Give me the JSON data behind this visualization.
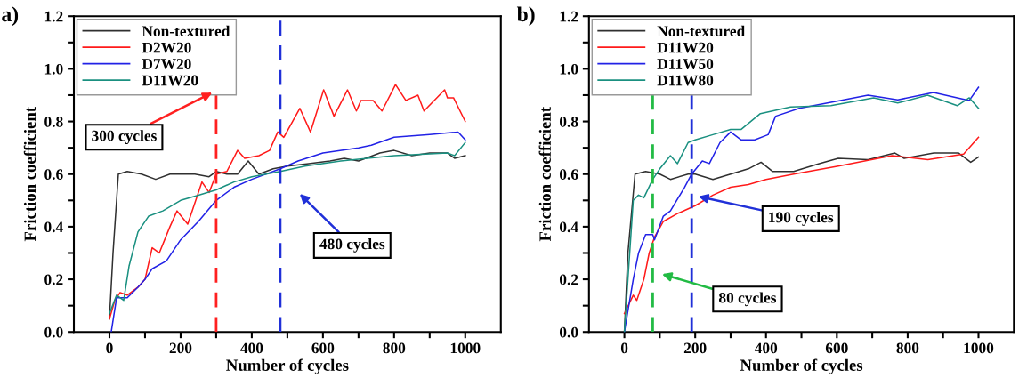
{
  "chart_data": [
    {
      "type": "line",
      "title": "a)",
      "xlabel": "Number of cycles",
      "ylabel": "Friction coefficient",
      "xlim": [
        -100,
        1100
      ],
      "ylim": [
        0,
        1.2
      ],
      "xticks": [
        0,
        {
          "value": 100,
          "label": null
        },
        200,
        {
          "value": 300,
          "label": null
        },
        400,
        {
          "value": 500,
          "label": null
        },
        600,
        {
          "value": 700,
          "label": null
        },
        800,
        {
          "value": 900,
          "label": null
        },
        1000
      ],
      "yticks": [
        {
          "value": 0,
          "label": "0.0"
        },
        {
          "value": 0.1,
          "label": null
        },
        0.2,
        {
          "value": 0.3,
          "label": null
        },
        0.4,
        {
          "value": 0.5,
          "label": null
        },
        0.6,
        {
          "value": 0.7,
          "label": null
        },
        0.8,
        {
          "value": 0.9,
          "label": null
        },
        {
          "value": 1,
          "label": "1.0"
        },
        {
          "value": 1.1,
          "label": null
        },
        1.2
      ],
      "legend": "top left",
      "grid": false,
      "line_style": "solid",
      "marker": "none",
      "series": [
        {
          "name": "Non-textured",
          "color": "#303030",
          "x": [
            0,
            10,
            25,
            50,
            90,
            130,
            170,
            200,
            240,
            280,
            300,
            330,
            360,
            390,
            420,
            460,
            500,
            560,
            620,
            660,
            700,
            760,
            800,
            850,
            900,
            950,
            970,
            1000
          ],
          "values": [
            0.05,
            0.3,
            0.6,
            0.61,
            0.6,
            0.58,
            0.6,
            0.6,
            0.6,
            0.59,
            0.61,
            0.6,
            0.6,
            0.65,
            0.6,
            0.62,
            0.63,
            0.64,
            0.65,
            0.66,
            0.65,
            0.68,
            0.69,
            0.67,
            0.68,
            0.68,
            0.66,
            0.67
          ]
        },
        {
          "name": "D2W20",
          "color": "#ff1a1a",
          "x": [
            0,
            15,
            30,
            50,
            80,
            100,
            120,
            140,
            170,
            190,
            220,
            260,
            280,
            300,
            330,
            360,
            380,
            420,
            450,
            473,
            490,
            535,
            565,
            602,
            631,
            669,
            694,
            707,
            741,
            766,
            804,
            833,
            867,
            884,
            942,
            950,
            967,
            1000
          ],
          "values": [
            0.05,
            0.12,
            0.15,
            0.14,
            0.17,
            0.2,
            0.32,
            0.3,
            0.4,
            0.46,
            0.41,
            0.57,
            0.53,
            0.6,
            0.61,
            0.69,
            0.66,
            0.67,
            0.69,
            0.76,
            0.74,
            0.85,
            0.76,
            0.92,
            0.82,
            0.92,
            0.84,
            0.88,
            0.88,
            0.84,
            0.94,
            0.88,
            0.9,
            0.84,
            0.92,
            0.89,
            0.89,
            0.8
          ]
        },
        {
          "name": "D7W20",
          "color": "#2222e6",
          "x": [
            5,
            20,
            50,
            80,
            100,
            120,
            160,
            200,
            250,
            300,
            350,
            400,
            480,
            530,
            600,
            700,
            736,
            800,
            900,
            980,
            1000
          ],
          "values": [
            0.0,
            0.13,
            0.13,
            0.17,
            0.2,
            0.24,
            0.27,
            0.35,
            0.42,
            0.5,
            0.55,
            0.58,
            0.62,
            0.65,
            0.68,
            0.7,
            0.71,
            0.74,
            0.75,
            0.76,
            0.73
          ]
        },
        {
          "name": "D11W20",
          "color": "#1a9080",
          "x": [
            0,
            20,
            40,
            55,
            80,
            110,
            150,
            200,
            250,
            300,
            350,
            400,
            480,
            550,
            650,
            800,
            950,
            970,
            1000
          ],
          "values": [
            0.07,
            0.14,
            0.12,
            0.25,
            0.38,
            0.44,
            0.46,
            0.5,
            0.52,
            0.54,
            0.57,
            0.59,
            0.61,
            0.63,
            0.65,
            0.67,
            0.68,
            0.67,
            0.72
          ]
        }
      ],
      "ref_lines": [
        {
          "axis": "x",
          "value": 300,
          "color": "#ff2020",
          "line_style": "dashed"
        },
        {
          "axis": "x",
          "value": 480,
          "color": "#2030d8",
          "line_style": "dashed"
        }
      ],
      "annotations": [
        "300 cycles",
        "480 cycles"
      ]
    },
    {
      "type": "line",
      "title": "b)",
      "xlabel": "Number of cycles",
      "ylabel": "Friction coefficient",
      "xlim": [
        -100,
        1100
      ],
      "ylim": [
        0,
        1.2
      ],
      "xticks": [
        0,
        {
          "value": 100,
          "label": null
        },
        200,
        {
          "value": 300,
          "label": null
        },
        400,
        {
          "value": 500,
          "label": null
        },
        600,
        {
          "value": 700,
          "label": null
        },
        800,
        {
          "value": 900,
          "label": null
        },
        1000
      ],
      "yticks": [
        {
          "value": 0,
          "label": "0.0"
        },
        {
          "value": 0.1,
          "label": null
        },
        0.2,
        {
          "value": 0.3,
          "label": null
        },
        0.4,
        {
          "value": 0.5,
          "label": null
        },
        0.6,
        {
          "value": 0.7,
          "label": null
        },
        0.8,
        {
          "value": 0.9,
          "label": null
        },
        {
          "value": 1,
          "label": "1.0"
        },
        {
          "value": 1.1,
          "label": null
        },
        1.2
      ],
      "legend": "top left",
      "grid": false,
      "line_style": "solid",
      "marker": "none",
      "series": [
        {
          "name": "Non-textured",
          "color": "#303030",
          "x": [
            0,
            10,
            30,
            60,
            100,
            130,
            180,
            200,
            250,
            300,
            350,
            386,
            419,
            478,
            550,
            604,
            688,
            764,
            790,
            874,
            944,
            978,
            1000
          ],
          "values": [
            0.0,
            0.3,
            0.6,
            0.61,
            0.6,
            0.58,
            0.6,
            0.6,
            0.58,
            0.6,
            0.62,
            0.645,
            0.61,
            0.61,
            0.64,
            0.66,
            0.655,
            0.68,
            0.66,
            0.68,
            0.68,
            0.645,
            0.665
          ]
        },
        {
          "name": "D11W20",
          "color": "#ff1a1a",
          "x": [
            0,
            25,
            35,
            55,
            70,
            85,
            110,
            150,
            200,
            250,
            300,
            350,
            400,
            478,
            604,
            756,
            857,
            958,
            1000
          ],
          "values": [
            0.07,
            0.14,
            0.12,
            0.2,
            0.3,
            0.36,
            0.42,
            0.45,
            0.48,
            0.52,
            0.55,
            0.56,
            0.58,
            0.6,
            0.63,
            0.67,
            0.655,
            0.676,
            0.74
          ]
        },
        {
          "name": "D11W50",
          "color": "#2222e6",
          "x": [
            0,
            25,
            40,
            60,
            80,
            85,
            110,
            130,
            170,
            190,
            220,
            240,
            270,
            300,
            330,
            368,
            406,
            427,
            494,
            600,
            688,
            772,
            873,
            940,
            974,
            1000
          ],
          "values": [
            0.0,
            0.2,
            0.3,
            0.37,
            0.37,
            0.35,
            0.44,
            0.46,
            0.55,
            0.6,
            0.65,
            0.64,
            0.72,
            0.76,
            0.73,
            0.73,
            0.75,
            0.82,
            0.85,
            0.877,
            0.9,
            0.882,
            0.91,
            0.89,
            0.88,
            0.93
          ]
        },
        {
          "name": "D11W80",
          "color": "#1a9080",
          "x": [
            0,
            25,
            40,
            55,
            80,
            100,
            130,
            150,
            180,
            200,
            250,
            300,
            330,
            384,
            469,
            583,
            704,
            772,
            856,
            940,
            974,
            1000
          ],
          "values": [
            0.0,
            0.5,
            0.52,
            0.51,
            0.58,
            0.62,
            0.67,
            0.64,
            0.72,
            0.73,
            0.75,
            0.77,
            0.77,
            0.83,
            0.855,
            0.86,
            0.89,
            0.87,
            0.9,
            0.86,
            0.89,
            0.85
          ]
        }
      ],
      "ref_lines": [
        {
          "axis": "x",
          "value": 80,
          "color": "#22bb44",
          "line_style": "dashed"
        },
        {
          "axis": "x",
          "value": 190,
          "color": "#2030d8",
          "line_style": "dashed"
        }
      ],
      "annotations": [
        "80 cycles",
        "190 cycles"
      ]
    }
  ]
}
